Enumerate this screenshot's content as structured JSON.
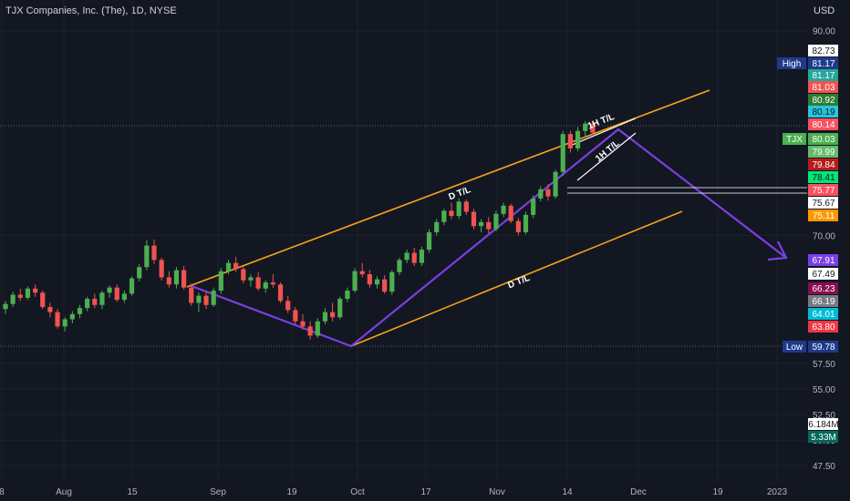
{
  "header": {
    "title": "TJX Companies, Inc. (The), 1D, NYSE",
    "currency": "USD"
  },
  "colors": {
    "background": "#131722",
    "up": "#26a69a",
    "up_candle": "#4caf50",
    "down_candle": "#ef5350",
    "channel": "#f7a21b",
    "zigzag": "#7b3fe4",
    "grid": "#1e222d",
    "axis_text": "#b2b5be"
  },
  "chart_data": {
    "type": "candlestick",
    "title": "TJX Companies, Inc. (The), 1D, NYSE",
    "y_ticks": [
      "90.00",
      "70.00",
      "57.50",
      "55.00",
      "52.50",
      "50.00",
      "47.50"
    ],
    "y_tick_values": [
      90,
      70,
      57.5,
      55,
      52.5,
      50,
      47.5
    ],
    "x_ticks": [
      "8",
      "Aug",
      "15",
      "Sep",
      "19",
      "Oct",
      "17",
      "Nov",
      "14",
      "Dec",
      "19",
      "2023"
    ],
    "price_tags": [
      {
        "label": "",
        "value": "82.73",
        "bg": "#ffffff",
        "fg": "#131722"
      },
      {
        "label": "High",
        "value": "81.17",
        "bg": "#1e3a8a",
        "fg": "#ffffff"
      },
      {
        "label": "",
        "value": "81.17",
        "bg": "#26a69a",
        "fg": "#ffffff"
      },
      {
        "label": "",
        "value": "81.03",
        "bg": "#ef5350",
        "fg": "#ffffff"
      },
      {
        "label": "",
        "value": "80.92",
        "bg": "#2e7d32",
        "fg": "#ffffff"
      },
      {
        "label": "",
        "value": "80.19",
        "bg": "#26c6da",
        "fg": "#131722"
      },
      {
        "label": "",
        "value": "80.14",
        "bg": "#f7525f",
        "fg": "#ffffff"
      },
      {
        "label": "TJX",
        "value": "80.03",
        "bg": "#4caf50",
        "fg": "#ffffff"
      },
      {
        "label": "",
        "value": "79.99",
        "bg": "#66bb6a",
        "fg": "#ffffff"
      },
      {
        "label": "",
        "value": "79.84",
        "bg": "#b71c1c",
        "fg": "#ffffff"
      },
      {
        "label": "",
        "value": "78.41",
        "bg": "#00e676",
        "fg": "#131722"
      },
      {
        "label": "",
        "value": "75.77",
        "bg": "#f7525f",
        "fg": "#ffffff"
      },
      {
        "label": "",
        "value": "75.67",
        "bg": "#ffffff",
        "fg": "#131722"
      },
      {
        "label": "",
        "value": "75.11",
        "bg": "#ff9800",
        "fg": "#ffffff"
      },
      {
        "label": "",
        "value": "67.91",
        "bg": "#7b3fe4",
        "fg": "#ffffff"
      },
      {
        "label": "",
        "value": "67.49",
        "bg": "#ffffff",
        "fg": "#131722"
      },
      {
        "label": "",
        "value": "66.23",
        "bg": "#880e4f",
        "fg": "#ffffff"
      },
      {
        "label": "",
        "value": "66.19",
        "bg": "#787b86",
        "fg": "#ffffff"
      },
      {
        "label": "",
        "value": "64.01",
        "bg": "#00bcd4",
        "fg": "#ffffff"
      },
      {
        "label": "",
        "value": "63.80",
        "bg": "#f23645",
        "fg": "#ffffff"
      },
      {
        "label": "Low",
        "value": "59.78",
        "bg": "#1e3a8a",
        "fg": "#ffffff"
      },
      {
        "label": "",
        "value": "6.184M",
        "bg": "#ffffff",
        "fg": "#131722"
      },
      {
        "label": "",
        "value": "5.33M",
        "bg": "#00695c",
        "fg": "#ffffff"
      }
    ],
    "annotations": [
      "D T/L",
      "D T/L",
      "1H T/L",
      "1H T/L"
    ],
    "series": [
      {
        "name": "TJX",
        "ohlc": [
          [
            62.8,
            63.6,
            62.3,
            63.3
          ],
          [
            63.3,
            64.5,
            63.0,
            64.2
          ],
          [
            64.2,
            64.8,
            63.6,
            63.9
          ],
          [
            63.9,
            65.0,
            63.7,
            64.8
          ],
          [
            64.8,
            65.2,
            64.0,
            64.4
          ],
          [
            64.4,
            64.6,
            62.8,
            63.0
          ],
          [
            63.0,
            63.4,
            62.0,
            62.5
          ],
          [
            62.5,
            62.8,
            60.9,
            61.1
          ],
          [
            61.1,
            62.0,
            60.6,
            61.8
          ],
          [
            61.8,
            62.6,
            61.4,
            62.3
          ],
          [
            62.3,
            63.2,
            61.9,
            62.9
          ],
          [
            62.9,
            64.0,
            62.6,
            63.8
          ],
          [
            63.8,
            64.3,
            62.9,
            63.2
          ],
          [
            63.2,
            64.6,
            62.8,
            64.4
          ],
          [
            64.4,
            65.1,
            63.9,
            64.9
          ],
          [
            64.9,
            65.2,
            63.5,
            63.7
          ],
          [
            63.7,
            64.6,
            63.4,
            64.3
          ],
          [
            64.3,
            66.0,
            64.1,
            65.8
          ],
          [
            65.8,
            67.2,
            65.5,
            66.9
          ],
          [
            66.9,
            69.5,
            66.6,
            69.0
          ],
          [
            69.0,
            69.6,
            67.2,
            67.6
          ],
          [
            67.6,
            67.8,
            65.6,
            65.9
          ],
          [
            65.9,
            66.5,
            64.9,
            65.2
          ],
          [
            65.2,
            66.9,
            64.8,
            66.6
          ],
          [
            66.6,
            67.0,
            64.7,
            64.9
          ],
          [
            64.9,
            65.3,
            63.1,
            63.4
          ],
          [
            63.4,
            64.4,
            62.5,
            64.1
          ],
          [
            64.1,
            64.5,
            62.8,
            63.2
          ],
          [
            63.2,
            64.9,
            63.0,
            64.6
          ],
          [
            64.6,
            66.8,
            64.3,
            66.5
          ],
          [
            66.5,
            67.6,
            66.2,
            67.3
          ],
          [
            67.3,
            67.9,
            66.4,
            66.7
          ],
          [
            66.7,
            67.0,
            65.3,
            65.6
          ],
          [
            65.6,
            66.2,
            65.0,
            65.9
          ],
          [
            65.9,
            66.4,
            64.6,
            64.8
          ],
          [
            64.8,
            65.6,
            64.4,
            65.4
          ],
          [
            65.4,
            66.2,
            64.9,
            65.2
          ],
          [
            65.2,
            65.4,
            63.4,
            63.6
          ],
          [
            63.6,
            64.1,
            62.4,
            62.7
          ],
          [
            62.7,
            63.0,
            61.3,
            61.6
          ],
          [
            61.6,
            62.3,
            60.8,
            61.1
          ],
          [
            61.1,
            61.6,
            59.8,
            60.2
          ],
          [
            60.2,
            61.9,
            60.0,
            61.6
          ],
          [
            61.6,
            62.9,
            61.3,
            62.5
          ],
          [
            62.5,
            63.4,
            61.6,
            62.0
          ],
          [
            62.0,
            64.0,
            61.8,
            63.8
          ],
          [
            63.8,
            64.9,
            63.5,
            64.6
          ],
          [
            64.6,
            66.8,
            64.4,
            66.5
          ],
          [
            66.5,
            67.3,
            65.9,
            66.2
          ],
          [
            66.2,
            66.6,
            64.9,
            65.2
          ],
          [
            65.2,
            66.0,
            64.8,
            65.7
          ],
          [
            65.7,
            66.1,
            64.3,
            64.5
          ],
          [
            64.5,
            66.6,
            64.2,
            66.4
          ],
          [
            66.4,
            67.8,
            66.1,
            67.6
          ],
          [
            67.6,
            68.6,
            67.3,
            68.3
          ],
          [
            68.3,
            68.8,
            67.0,
            67.3
          ],
          [
            67.3,
            68.9,
            67.0,
            68.6
          ],
          [
            68.6,
            70.6,
            68.3,
            70.3
          ],
          [
            70.3,
            71.6,
            70.0,
            71.3
          ],
          [
            71.3,
            72.6,
            71.0,
            72.4
          ],
          [
            72.4,
            73.2,
            71.6,
            71.9
          ],
          [
            71.9,
            73.6,
            71.6,
            73.3
          ],
          [
            73.3,
            73.5,
            72.0,
            72.3
          ],
          [
            72.3,
            72.6,
            70.6,
            70.9
          ],
          [
            70.9,
            71.6,
            70.3,
            71.3
          ],
          [
            71.3,
            71.8,
            70.2,
            70.6
          ],
          [
            70.6,
            72.4,
            70.4,
            72.1
          ],
          [
            72.1,
            73.2,
            71.8,
            72.9
          ],
          [
            72.9,
            73.1,
            71.2,
            71.4
          ],
          [
            71.4,
            71.7,
            70.0,
            70.3
          ],
          [
            70.3,
            72.3,
            70.1,
            72.0
          ],
          [
            72.0,
            73.9,
            71.7,
            73.6
          ],
          [
            73.6,
            74.8,
            73.3,
            74.5
          ],
          [
            74.5,
            75.0,
            73.4,
            73.8
          ],
          [
            73.8,
            76.4,
            73.6,
            76.2
          ],
          [
            76.2,
            80.2,
            75.8,
            79.9
          ],
          [
            79.9,
            80.2,
            78.1,
            78.5
          ],
          [
            78.5,
            80.6,
            78.2,
            80.2
          ],
          [
            80.2,
            81.17,
            79.6,
            80.92
          ],
          [
            80.92,
            81.03,
            79.84,
            80.03
          ]
        ]
      }
    ],
    "ylim": [
      46,
      93
    ],
    "y_label": "USD"
  }
}
